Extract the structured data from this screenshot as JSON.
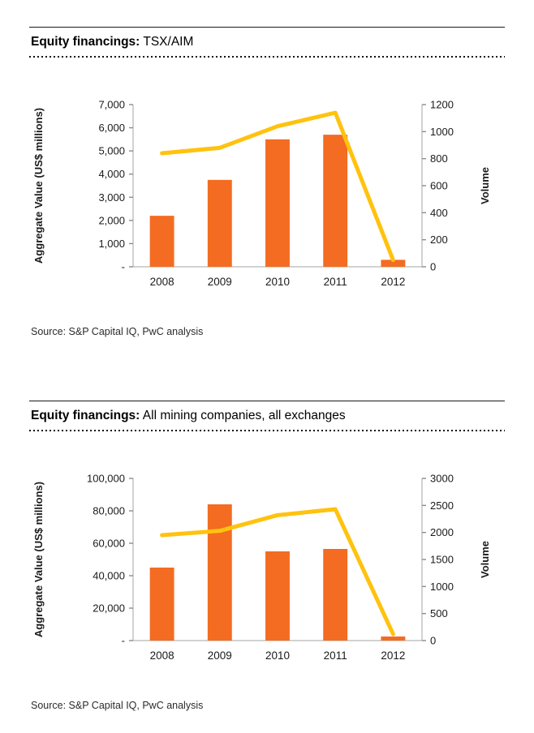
{
  "colors": {
    "bar": "#F36C21",
    "line": "#FFC20E",
    "axis_line": "#a6a6a6",
    "tick_mark": "#8c8c8c",
    "text": "#1a1a1a"
  },
  "chart_data": [
    {
      "type": "bar+line",
      "title_bold": "Equity financings:",
      "title_rest": " TSX/AIM",
      "source": "Source: S&P Capital IQ, PwC analysis",
      "categories": [
        "2008",
        "2009",
        "2010",
        "2011",
        "2012"
      ],
      "left_axis": {
        "label": "Aggregate Value (US$ millions)",
        "min": 0,
        "max": 7000,
        "ticks": [
          "-",
          "1,000",
          "2,000",
          "3,000",
          "4,000",
          "5,000",
          "6,000",
          "7,000"
        ]
      },
      "right_axis": {
        "label": "Volume",
        "min": 0,
        "max": 1200,
        "ticks": [
          "0",
          "200",
          "400",
          "600",
          "800",
          "1000",
          "1200"
        ]
      },
      "bar_series": {
        "name": "Aggregate Value (US$ millions)",
        "axis": "left",
        "values": [
          2200,
          3750,
          5500,
          5700,
          300
        ]
      },
      "line_series": {
        "name": "Volume",
        "axis": "right",
        "values": [
          840,
          880,
          1040,
          1140,
          50
        ]
      }
    },
    {
      "type": "bar+line",
      "title_bold": "Equity financings:",
      "title_rest": " All mining companies, all exchanges",
      "source": "Source: S&P Capital IQ, PwC analysis",
      "categories": [
        "2008",
        "2009",
        "2010",
        "2011",
        "2012"
      ],
      "left_axis": {
        "label": "Aggregate Value (US$ millions)",
        "min": 0,
        "max": 100000,
        "ticks": [
          "-",
          "20,000",
          "40,000",
          "60,000",
          "80,000",
          "100,000"
        ]
      },
      "right_axis": {
        "label": "Volume",
        "min": 0,
        "max": 3000,
        "ticks": [
          "0",
          "500",
          "1000",
          "1500",
          "2000",
          "2500",
          "3000"
        ]
      },
      "bar_series": {
        "name": "Aggregate Value (US$ millions)",
        "axis": "left",
        "values": [
          45000,
          84000,
          55000,
          56500,
          2500
        ]
      },
      "line_series": {
        "name": "Volume",
        "axis": "right",
        "values": [
          1950,
          2030,
          2320,
          2430,
          120
        ]
      }
    }
  ]
}
